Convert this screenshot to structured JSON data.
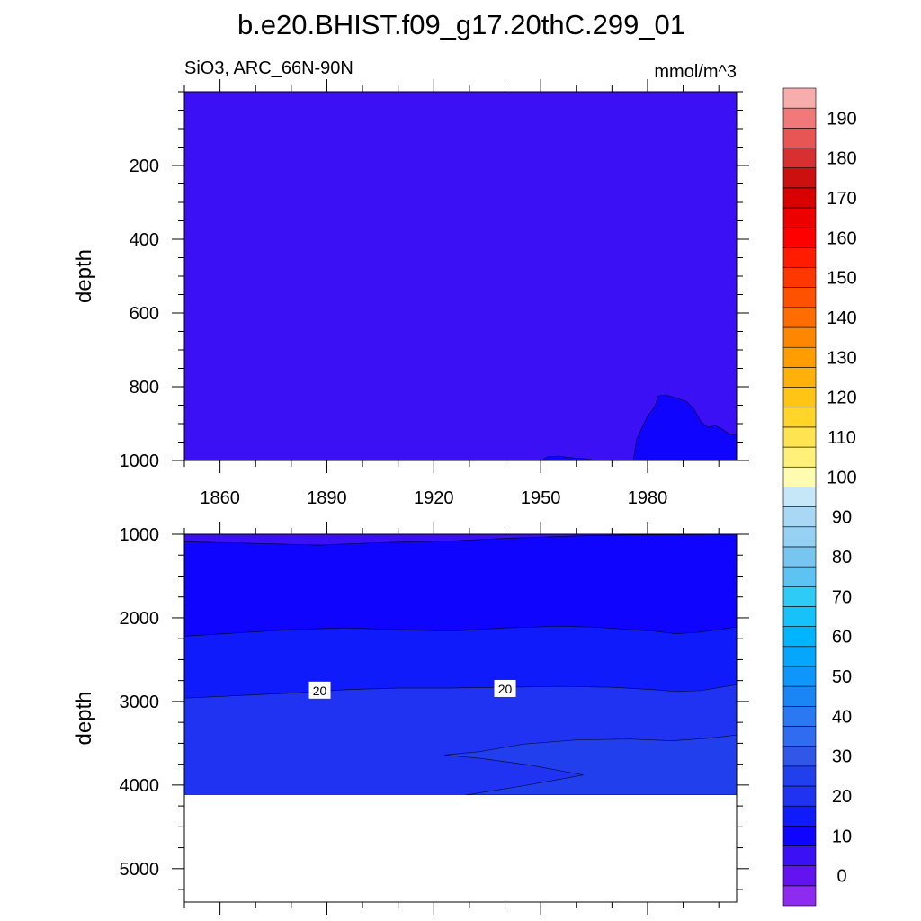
{
  "chart_data": {
    "type": "heatmap",
    "title": "b.e20.BHIST.f09_g17.20thC.299_01",
    "variable": "SiO3, ARC_66N-90N",
    "units": "mmol/m^3",
    "ylabel": "depth",
    "x_ticks": [
      "1860",
      "1890",
      "1920",
      "1950",
      "1980"
    ],
    "x_tick_values": [
      1860,
      1890,
      1920,
      1950,
      1980
    ],
    "xlim": [
      1850,
      2005
    ],
    "upper_panel": {
      "ylim": [
        0,
        1000
      ],
      "y_ticks": [
        "200",
        "400",
        "600",
        "800",
        "1000"
      ],
      "y_tick_values": [
        200,
        400,
        600,
        800,
        1000
      ],
      "background_level": 5,
      "regions": [
        {
          "level": 10,
          "points": [
            [
              1950,
              1000
            ],
            [
              1952,
              990
            ],
            [
              1955,
              988
            ],
            [
              1958,
              992
            ],
            [
              1962,
              995
            ],
            [
              1966,
              1000
            ]
          ]
        },
        {
          "level": 10,
          "points": [
            [
              1976,
              1000
            ],
            [
              1977,
              940
            ],
            [
              1979,
              900
            ],
            [
              1980,
              880
            ],
            [
              1982,
              855
            ],
            [
              1983,
              825
            ],
            [
              1985,
              822
            ],
            [
              1988,
              830
            ],
            [
              1991,
              840
            ],
            [
              1993,
              860
            ],
            [
              1995,
              895
            ],
            [
              1997,
              910
            ],
            [
              1999,
              905
            ],
            [
              2001,
              915
            ],
            [
              2003,
              928
            ],
            [
              2005,
              930
            ],
            [
              2005,
              1000
            ]
          ]
        }
      ]
    },
    "lower_panel": {
      "ylim": [
        1000,
        5400
      ],
      "y_ticks": [
        "1000",
        "2000",
        "3000",
        "4000",
        "5000"
      ],
      "y_tick_values": [
        1000,
        2000,
        3000,
        4000,
        5000
      ],
      "ocean_floor_depth": 4120,
      "bands": [
        {
          "level": 5,
          "top": [
            [
              1850,
              1000
            ],
            [
              2005,
              1000
            ]
          ],
          "bottom": [
            [
              1850,
              1090
            ],
            [
              1870,
              1110
            ],
            [
              1888,
              1130
            ],
            [
              1905,
              1100
            ],
            [
              1925,
              1080
            ],
            [
              1940,
              1050
            ],
            [
              1960,
              1020
            ],
            [
              1975,
              1010
            ],
            [
              1990,
              1005
            ],
            [
              2005,
              1000
            ]
          ]
        },
        {
          "level": 10,
          "top": [
            [
              1850,
              1090
            ],
            [
              1870,
              1110
            ],
            [
              1888,
              1130
            ],
            [
              1905,
              1100
            ],
            [
              1925,
              1080
            ],
            [
              1940,
              1050
            ],
            [
              1960,
              1020
            ],
            [
              1975,
              1010
            ],
            [
              1990,
              1005
            ],
            [
              2005,
              1000
            ]
          ],
          "bottom": [
            [
              1850,
              2220
            ],
            [
              1865,
              2180
            ],
            [
              1880,
              2140
            ],
            [
              1895,
              2120
            ],
            [
              1910,
              2140
            ],
            [
              1925,
              2160
            ],
            [
              1940,
              2120
            ],
            [
              1955,
              2100
            ],
            [
              1965,
              2110
            ],
            [
              1975,
              2140
            ],
            [
              1982,
              2160
            ],
            [
              1988,
              2190
            ],
            [
              1995,
              2170
            ],
            [
              2005,
              2110
            ]
          ]
        },
        {
          "level": 15,
          "top": [
            [
              1850,
              2220
            ],
            [
              1865,
              2180
            ],
            [
              1880,
              2140
            ],
            [
              1895,
              2120
            ],
            [
              1910,
              2140
            ],
            [
              1925,
              2160
            ],
            [
              1940,
              2120
            ],
            [
              1955,
              2100
            ],
            [
              1965,
              2110
            ],
            [
              1975,
              2140
            ],
            [
              1982,
              2160
            ],
            [
              1988,
              2190
            ],
            [
              1995,
              2170
            ],
            [
              2005,
              2110
            ]
          ],
          "bottom": [
            [
              1850,
              2960
            ],
            [
              1865,
              2930
            ],
            [
              1880,
              2900
            ],
            [
              1895,
              2860
            ],
            [
              1910,
              2840
            ],
            [
              1925,
              2840
            ],
            [
              1940,
              2830
            ],
            [
              1955,
              2820
            ],
            [
              1970,
              2830
            ],
            [
              1982,
              2860
            ],
            [
              1988,
              2880
            ],
            [
              1995,
              2870
            ],
            [
              2005,
              2800
            ]
          ]
        },
        {
          "level": 20,
          "top": [
            [
              1850,
              2960
            ],
            [
              1865,
              2930
            ],
            [
              1880,
              2900
            ],
            [
              1895,
              2860
            ],
            [
              1910,
              2840
            ],
            [
              1925,
              2840
            ],
            [
              1940,
              2830
            ],
            [
              1955,
              2820
            ],
            [
              1970,
              2830
            ],
            [
              1982,
              2860
            ],
            [
              1988,
              2880
            ],
            [
              1995,
              2870
            ],
            [
              2005,
              2800
            ]
          ],
          "bottom": [
            [
              1850,
              4120
            ],
            [
              2005,
              4120
            ]
          ]
        }
      ],
      "regions": [
        {
          "level": 25,
          "points": [
            [
              1923,
              3640
            ],
            [
              1933,
              3600
            ],
            [
              1945,
              3510
            ],
            [
              1960,
              3460
            ],
            [
              1975,
              3450
            ],
            [
              1987,
              3470
            ],
            [
              1997,
              3440
            ],
            [
              2005,
              3400
            ],
            [
              2005,
              4120
            ],
            [
              1929,
              4120
            ],
            [
              1945,
              4010
            ],
            [
              1962,
              3880
            ],
            [
              1947,
              3760
            ],
            [
              1933,
              3680
            ]
          ]
        }
      ],
      "contour_labels": [
        {
          "text": "20",
          "x": 1888,
          "y": 2870
        },
        {
          "text": "20",
          "x": 1940,
          "y": 2850
        }
      ]
    },
    "colorbar": {
      "levels": [
        -5,
        0,
        5,
        10,
        15,
        20,
        25,
        30,
        35,
        40,
        45,
        50,
        55,
        60,
        65,
        70,
        75,
        80,
        85,
        90,
        95,
        100,
        105,
        110,
        115,
        120,
        125,
        130,
        135,
        140,
        145,
        150,
        155,
        160,
        165,
        170,
        175,
        180,
        185,
        190,
        195
      ],
      "labels": [
        "0",
        "10",
        "20",
        "30",
        "40",
        "50",
        "60",
        "70",
        "80",
        "90",
        "100",
        "110",
        "120",
        "130",
        "140",
        "150",
        "160",
        "170",
        "180",
        "190"
      ],
      "label_values": [
        0,
        10,
        20,
        30,
        40,
        50,
        60,
        70,
        80,
        90,
        100,
        110,
        120,
        130,
        140,
        150,
        160,
        170,
        180,
        190
      ],
      "colors": [
        "#8e2bf0",
        "#6213ef",
        "#3c10f5",
        "#0f05ff",
        "#0f1bfa",
        "#2033f2",
        "#223fee",
        "#3257e8",
        "#2f6cf0",
        "#2b79f2",
        "#1a86f5",
        "#0f96fa",
        "#05a6fb",
        "#00b4ff",
        "#17c2fb",
        "#2fcbf7",
        "#5cc3f3",
        "#78c5f0",
        "#96d0f3",
        "#a8d8f3",
        "#c5e7f8",
        "#fffbb0",
        "#fff07a",
        "#ffe451",
        "#ffd52a",
        "#ffc414",
        "#ffb10a",
        "#ff9c00",
        "#ff8600",
        "#ff6d00",
        "#ff5200",
        "#ff3800",
        "#ff1c00",
        "#ff0000",
        "#ee0000",
        "#d90000",
        "#cc1010",
        "#d83030",
        "#e85555",
        "#f07878",
        "#f8adad"
      ]
    }
  }
}
